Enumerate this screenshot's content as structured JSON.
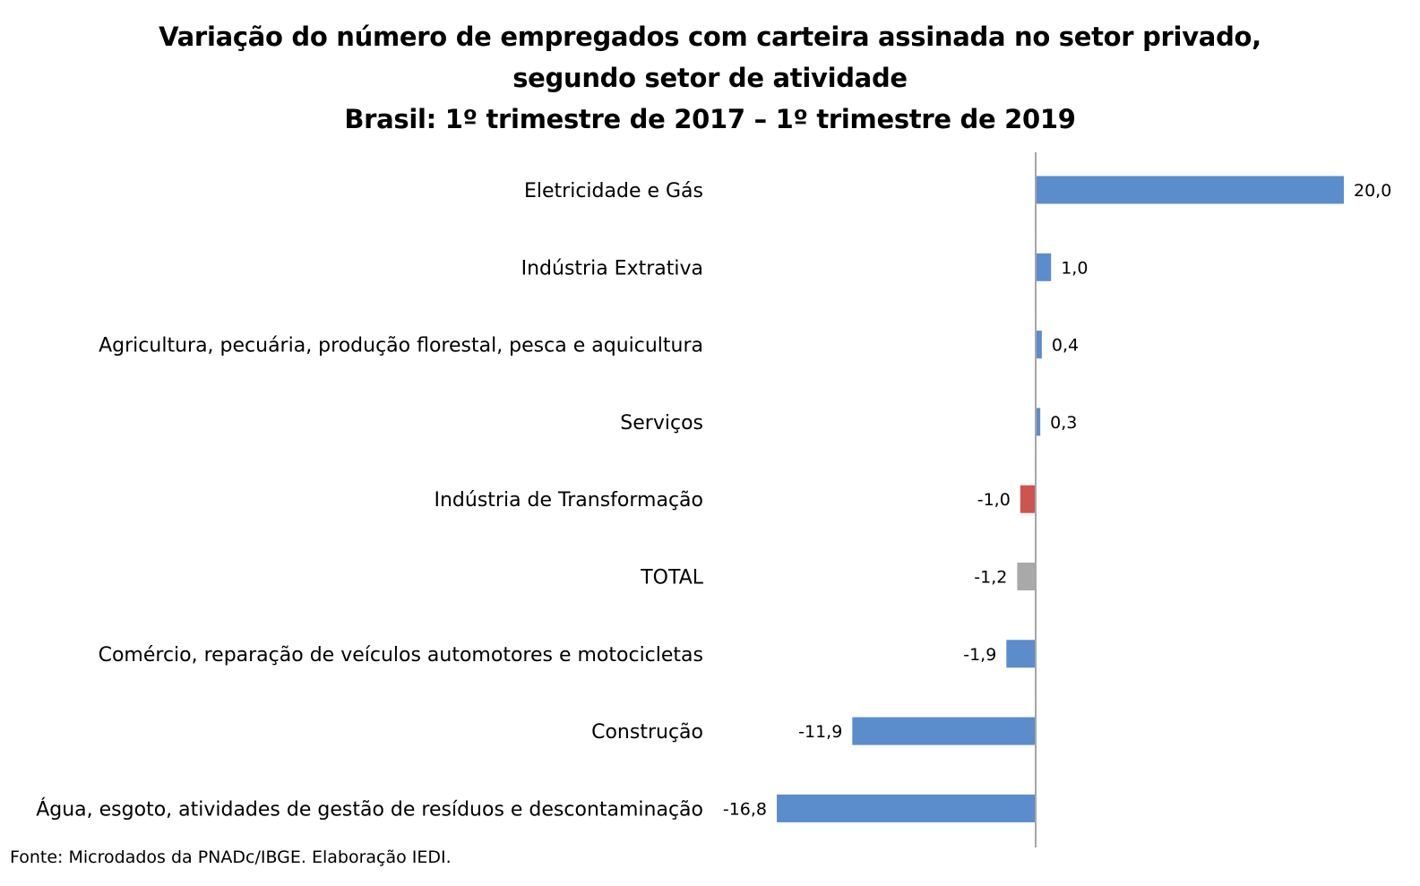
{
  "chart_data": {
    "type": "bar",
    "orientation": "horizontal",
    "title": [
      "Variação do número de empregados com carteira assinada no setor privado,",
      "segundo setor de atividade",
      "Brasil: 1º trimestre de 2017 – 1º trimestre de 2019"
    ],
    "categories": [
      "Eletricidade e Gás",
      "Indústria Extrativa",
      "Agricultura, pecuária, produção florestal, pesca e aquicultura",
      "Serviços",
      "Indústria de Transformação",
      "TOTAL",
      "Comércio, reparação de veículos automotores e motocicletas",
      "Construção",
      "Água, esgoto, atividades de gestão de resíduos e descontaminação"
    ],
    "values": [
      20.0,
      1.0,
      0.4,
      0.3,
      -1.0,
      -1.2,
      -1.9,
      -11.9,
      -16.8
    ],
    "value_labels": [
      "20,0",
      "1,0",
      "0,4",
      "0,3",
      "-1,0",
      "-1,2",
      "-1,9",
      "-11,9",
      "-16,8"
    ],
    "bar_colors": [
      "#5b8ccc",
      "#5b8ccc",
      "#5b8ccc",
      "#5b8ccc",
      "#cd5451",
      "#a9a9a9",
      "#5b8ccc",
      "#5b8ccc",
      "#5b8ccc"
    ],
    "xlim": [
      -16.8,
      20.0
    ],
    "xlabel": "",
    "ylabel": "",
    "grid": false,
    "legend": "none",
    "source": "Fonte: Microdados da PNADc/IBGE. Elaboração IEDI."
  }
}
